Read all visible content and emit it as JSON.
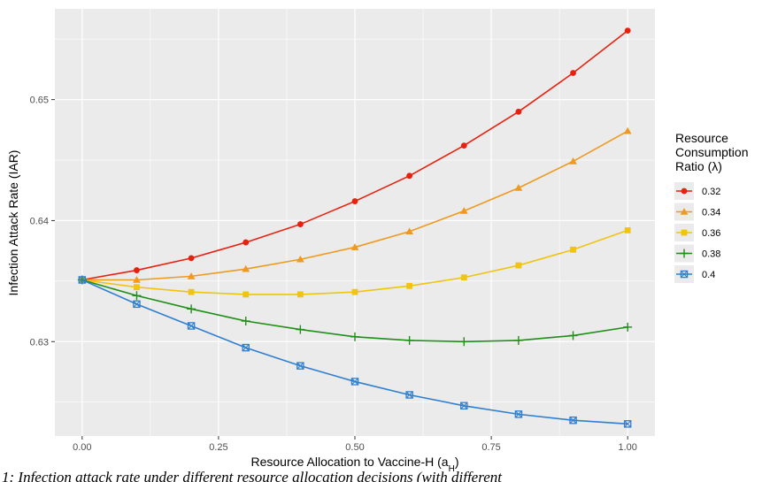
{
  "chart_data": {
    "type": "line",
    "xlabel": "Resource Allocation to Vaccine-H (a",
    "xlabel_sub": "H",
    "xlabel_end": ")",
    "ylabel": "Infection Attack Rate (IAR)",
    "xlim": [
      -0.05,
      1.05
    ],
    "ylim": [
      0.6222,
      0.6575
    ],
    "x_ticks": [
      0.0,
      0.25,
      0.5,
      0.75,
      1.0
    ],
    "x_tick_labels": [
      "0.00",
      "0.25",
      "0.50",
      "0.75",
      "1.00"
    ],
    "y_ticks": [
      0.63,
      0.64,
      0.65
    ],
    "y_tick_labels": [
      "0.63",
      "0.64",
      "0.65"
    ],
    "grid": true,
    "legend_position": "right",
    "legend_title": [
      "Resource",
      "Consumption",
      "Ratio (λ)"
    ],
    "x": [
      0.0,
      0.1,
      0.2,
      0.3,
      0.4,
      0.5,
      0.6,
      0.7,
      0.8,
      0.9,
      1.0
    ],
    "series": [
      {
        "name": "0.32",
        "color": "#e8210f",
        "marker": "circle",
        "values": [
          0.6351,
          0.6359,
          0.6369,
          0.6382,
          0.6397,
          0.6416,
          0.6437,
          0.6462,
          0.649,
          0.6522,
          0.6557
        ]
      },
      {
        "name": "0.34",
        "color": "#ef9a1e",
        "marker": "triangle",
        "values": [
          0.6351,
          0.6351,
          0.6354,
          0.636,
          0.6368,
          0.6378,
          0.6391,
          0.6408,
          0.6427,
          0.6449,
          0.6474
        ]
      },
      {
        "name": "0.36",
        "color": "#f0c40f",
        "marker": "square",
        "values": [
          0.6351,
          0.6345,
          0.6341,
          0.6339,
          0.6339,
          0.6341,
          0.6346,
          0.6353,
          0.6363,
          0.6376,
          0.6392
        ]
      },
      {
        "name": "0.38",
        "color": "#1f8f17",
        "marker": "plus",
        "values": [
          0.6351,
          0.6338,
          0.6327,
          0.6317,
          0.631,
          0.6304,
          0.6301,
          0.63,
          0.6301,
          0.6305,
          0.6312
        ]
      },
      {
        "name": "0.4",
        "color": "#2f7fd1",
        "marker": "boxx",
        "values": [
          0.6351,
          0.6331,
          0.6313,
          0.6295,
          0.628,
          0.6267,
          0.6256,
          0.6247,
          0.624,
          0.6235,
          0.6232
        ]
      }
    ]
  },
  "caption": "1: Infection attack rate under different resource allocation decisions (with different"
}
